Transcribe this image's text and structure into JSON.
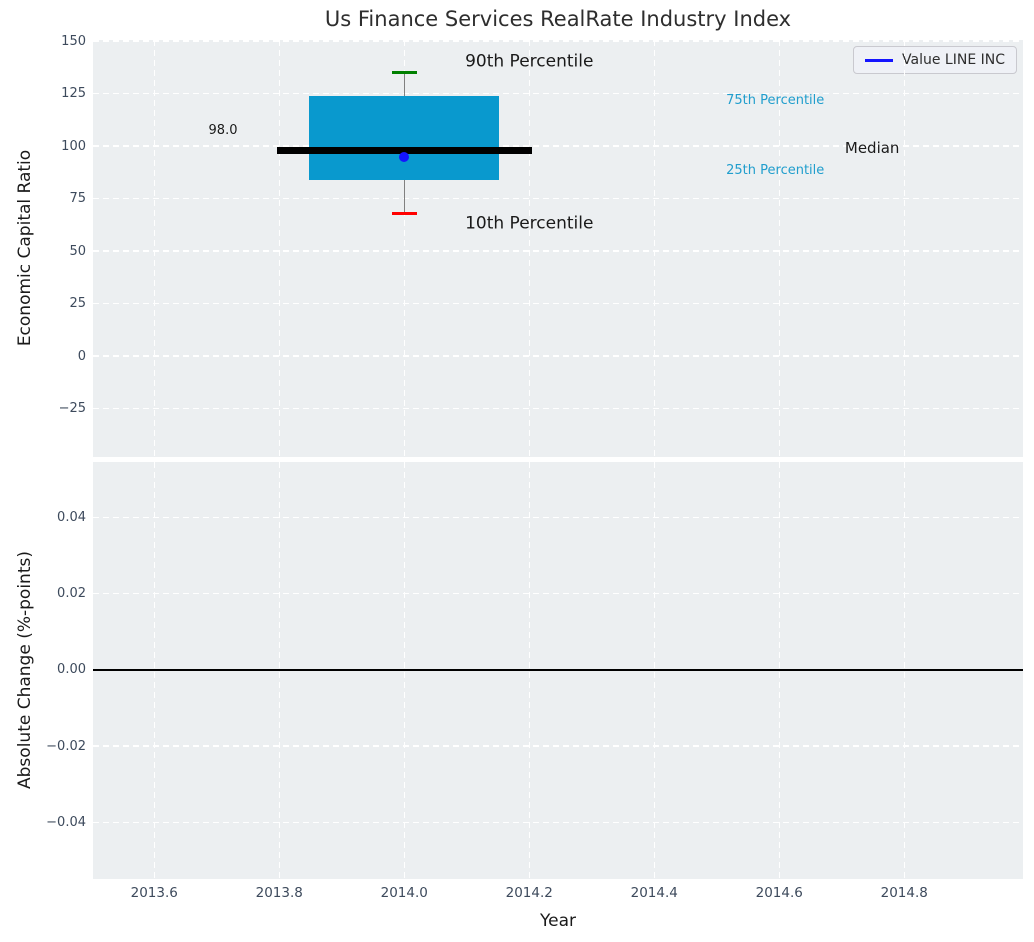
{
  "figure": {
    "background": "#ffffff",
    "plot_background": "#eceff1",
    "grid_color": "#ffffff",
    "tick_color": "#3d4a5c",
    "title_color": "#2e2e2e",
    "label_color": "#1a1a1a"
  },
  "chart_data": [
    {
      "type": "boxplot",
      "title": "Us Finance Services RealRate Industry Index",
      "ylabel": "Economic Capital Ratio",
      "xlim": [
        2013.502,
        2014.99
      ],
      "ylim": [
        -48.1,
        150.5
      ],
      "grid": true,
      "yticks": [
        150,
        125,
        100,
        75,
        50,
        25,
        0,
        -25
      ],
      "ytick_labels": [
        "150",
        "125",
        "100",
        "75",
        "50",
        "25",
        "0",
        "−25"
      ],
      "legend": {
        "label": "Value LINE INC",
        "line_color": "#1414ff",
        "position": "upper right"
      },
      "box": {
        "x": 2014.0,
        "p90": 135,
        "q75": 124,
        "median": 98,
        "q25": 84,
        "p10": 68,
        "company_value": 95,
        "median_label": "98.0",
        "box_halfwidth": 0.152,
        "median_halfwidth": 0.204,
        "cap_halfwidth": 0.02,
        "box_color": "#0999ce",
        "median_color": "#000000",
        "whisker_color": "#808080",
        "p90_cap_color": "#008000",
        "p10_cap_color": "#ff0000",
        "point_color": "#1414ff"
      },
      "annotations": [
        {
          "text": "90th Percentile",
          "x": 2014.2,
          "y": 140,
          "color": "#1a1a1a",
          "size": 17,
          "anchor": "center"
        },
        {
          "text": "10th Percentile",
          "x": 2014.2,
          "y": 63,
          "color": "#1a1a1a",
          "size": 17,
          "anchor": "center"
        },
        {
          "text": "98.0",
          "x": 2013.71,
          "y": 107,
          "color": "#1a1a1a",
          "size": 13,
          "anchor": "center"
        },
        {
          "text": "75th Percentile",
          "x": 2014.515,
          "y": 121.5,
          "color": "#219ecd",
          "size": 13,
          "anchor": "left"
        },
        {
          "text": "Median",
          "x": 2014.705,
          "y": 99,
          "color": "#1a1a1a",
          "size": 15,
          "anchor": "left"
        },
        {
          "text": "25th Percentile",
          "x": 2014.515,
          "y": 88,
          "color": "#219ecd",
          "size": 13,
          "anchor": "left"
        }
      ]
    },
    {
      "type": "line",
      "ylabel": "Absolute Change (%-points)",
      "xlabel": "Year",
      "xlim": [
        2013.502,
        2014.99
      ],
      "ylim": [
        -0.0548,
        0.0545
      ],
      "grid": true,
      "yticks": [
        0.04,
        0.02,
        0.0,
        -0.02,
        -0.04
      ],
      "ytick_labels": [
        "0.04",
        "0.02",
        "0.00",
        "−0.02",
        "−0.04"
      ],
      "xticks": [
        2013.6,
        2013.8,
        2014.0,
        2014.2,
        2014.4,
        2014.6,
        2014.8
      ],
      "xtick_labels": [
        "2013.6",
        "2013.8",
        "2014.0",
        "2014.2",
        "2014.4",
        "2014.6",
        "2014.8"
      ],
      "zero_line": {
        "y": 0.0,
        "color": "#000000"
      },
      "series": []
    }
  ]
}
